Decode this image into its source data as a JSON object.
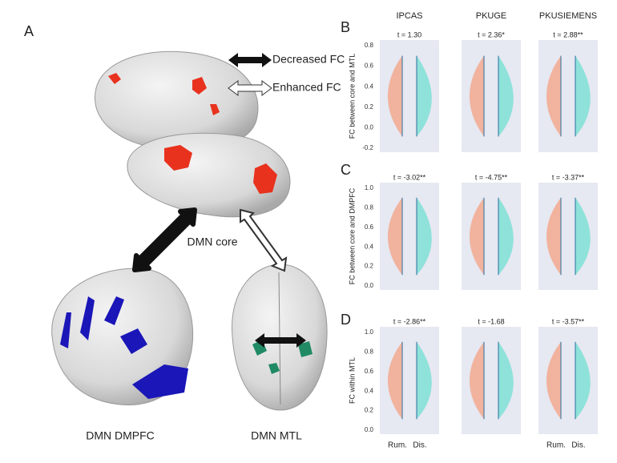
{
  "panel_a": {
    "label": "A",
    "legend": [
      "Decreased FC",
      "Enhanced FC"
    ],
    "regions": [
      "DMN core",
      "DMN DMPFC",
      "DMN MTL"
    ]
  },
  "columns": [
    "IPCAS",
    "PKUGE",
    "PKUSIEMENS"
  ],
  "rows": [
    {
      "label": "B",
      "y_axis": "FC between core and MTL",
      "yticks": [
        "0.8",
        "0.6",
        "0.4",
        "0.2",
        "0.0",
        "-0.2"
      ],
      "t": [
        "t = 1.30",
        "t = 2.36*",
        "t = 2.88**"
      ]
    },
    {
      "label": "C",
      "y_axis": "FC between core and DMPFC",
      "yticks": [
        "1.0",
        "0.8",
        "0.6",
        "0.4",
        "0.2",
        "0.0"
      ],
      "t": [
        "t = -3.02**",
        "t = -4.75**",
        "t = -3.37**"
      ]
    },
    {
      "label": "D",
      "y_axis": "FC within MTL",
      "yticks": [
        "1.0",
        "0.8",
        "0.6",
        "0.4",
        "0.2",
        "0.0"
      ],
      "t": [
        "t = -2.86**",
        "t = -1.68",
        "t = -3.57**"
      ]
    }
  ],
  "x_labels": [
    "Rum.",
    "Dis."
  ]
}
